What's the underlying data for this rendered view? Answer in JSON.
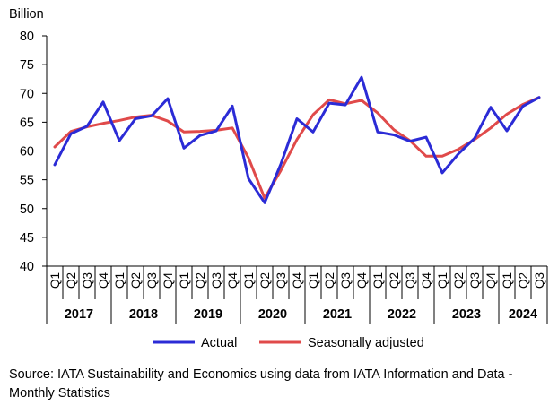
{
  "chart_data": {
    "type": "line",
    "ylabel": "Billion",
    "ylim": [
      40,
      80
    ],
    "yticks": [
      40,
      45,
      50,
      55,
      60,
      65,
      70,
      75,
      80
    ],
    "categories": [
      "Q1",
      "Q2",
      "Q3",
      "Q4",
      "Q1",
      "Q2",
      "Q3",
      "Q4",
      "Q1",
      "Q2",
      "Q3",
      "Q4",
      "Q1",
      "Q2",
      "Q3",
      "Q4",
      "Q1",
      "Q2",
      "Q3",
      "Q4",
      "Q1",
      "Q2",
      "Q3",
      "Q4",
      "Q1",
      "Q2",
      "Q3",
      "Q4",
      "Q1",
      "Q2",
      "Q3"
    ],
    "year_groups": [
      {
        "label": "2017",
        "count": 4
      },
      {
        "label": "2018",
        "count": 4
      },
      {
        "label": "2019",
        "count": 4
      },
      {
        "label": "2020",
        "count": 4
      },
      {
        "label": "2021",
        "count": 4
      },
      {
        "label": "2022",
        "count": 4
      },
      {
        "label": "2023",
        "count": 4
      },
      {
        "label": "2024",
        "count": 3
      }
    ],
    "series": [
      {
        "name": "Actual",
        "color": "#2b2bd6",
        "values": [
          57.6,
          63.0,
          64.3,
          68.5,
          61.8,
          65.6,
          66.1,
          69.1,
          60.5,
          62.7,
          63.5,
          67.8,
          55.2,
          51.0,
          57.7,
          65.6,
          63.3,
          68.3,
          68.0,
          72.8,
          63.3,
          62.8,
          61.7,
          62.4,
          56.2,
          59.5,
          62.2,
          67.6,
          63.5,
          67.8,
          69.3
        ]
      },
      {
        "name": "Seasonally adjusted",
        "color": "#e04a4a",
        "values": [
          60.7,
          63.4,
          64.2,
          64.8,
          65.3,
          65.9,
          66.2,
          65.2,
          63.3,
          63.4,
          63.6,
          64.0,
          58.8,
          51.8,
          56.6,
          62.0,
          66.3,
          68.9,
          68.2,
          68.8,
          66.6,
          63.7,
          61.8,
          59.1,
          59.1,
          60.3,
          62.0,
          64.0,
          66.4,
          68.1,
          69.3
        ]
      }
    ]
  },
  "source": "Source: IATA Sustainability and Economics using data from IATA Information and Data - Monthly Statistics"
}
